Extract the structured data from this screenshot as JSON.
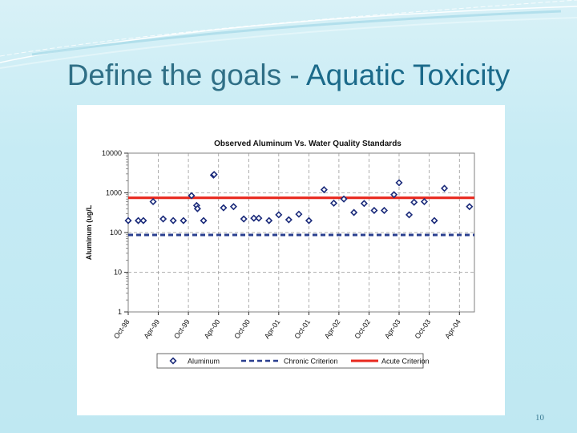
{
  "slide": {
    "title_part1": "Define the goals - ",
    "title_part2": "Aquatic Toxicity",
    "page_number": "10",
    "title_color": "#2f6f86"
  },
  "chart_data": {
    "type": "scatter",
    "title": "Observed Aluminum Vs. Water Quality Standards",
    "ylabel": "Aluminum (ug/L",
    "xlabel": "",
    "y_scale": "log",
    "ylim": [
      1,
      10000
    ],
    "y_ticks": [
      {
        "value": 1,
        "label": "1"
      },
      {
        "value": 10,
        "label": "10"
      },
      {
        "value": 100,
        "label": "100"
      },
      {
        "value": 1000,
        "label": "1000"
      },
      {
        "value": 10000,
        "label": "10000"
      }
    ],
    "xlim": [
      "1998-10-01",
      "2004-07-01"
    ],
    "x_ticks": [
      "Oct-98",
      "Apr-99",
      "Oct-99",
      "Apr-00",
      "Oct-00",
      "Apr-01",
      "Oct-01",
      "Apr-02",
      "Oct-02",
      "Apr-03",
      "Oct-03",
      "Apr-04"
    ],
    "x_tick_dates": [
      "1998-10-01",
      "1999-04-01",
      "1999-10-01",
      "2000-04-01",
      "2000-10-01",
      "2001-04-01",
      "2001-10-01",
      "2002-04-01",
      "2002-10-01",
      "2003-04-01",
      "2003-10-01",
      "2004-04-01"
    ],
    "grid": true,
    "legend_position": "bottom",
    "series": [
      {
        "name": "Aluminum",
        "kind": "markers",
        "color": "#1a2a7a",
        "points": [
          {
            "x": "1998-10-01",
            "y": 200
          },
          {
            "x": "1998-12-01",
            "y": 200
          },
          {
            "x": "1999-01-01",
            "y": 200
          },
          {
            "x": "1999-03-01",
            "y": 600
          },
          {
            "x": "1999-05-01",
            "y": 220
          },
          {
            "x": "1999-07-01",
            "y": 200
          },
          {
            "x": "1999-09-01",
            "y": 200
          },
          {
            "x": "1999-10-20",
            "y": 850
          },
          {
            "x": "1999-11-20",
            "y": 480
          },
          {
            "x": "1999-11-25",
            "y": 400
          },
          {
            "x": "2000-01-01",
            "y": 200
          },
          {
            "x": "2000-03-01",
            "y": 2800
          },
          {
            "x": "2000-03-05",
            "y": 2900
          },
          {
            "x": "2000-05-01",
            "y": 420
          },
          {
            "x": "2000-07-01",
            "y": 450
          },
          {
            "x": "2000-09-01",
            "y": 220
          },
          {
            "x": "2000-11-01",
            "y": 230
          },
          {
            "x": "2000-12-01",
            "y": 230
          },
          {
            "x": "2001-02-01",
            "y": 200
          },
          {
            "x": "2001-04-01",
            "y": 280
          },
          {
            "x": "2001-06-01",
            "y": 210
          },
          {
            "x": "2001-08-01",
            "y": 290
          },
          {
            "x": "2001-10-01",
            "y": 200
          },
          {
            "x": "2002-01-01",
            "y": 1200
          },
          {
            "x": "2002-03-01",
            "y": 550
          },
          {
            "x": "2002-05-01",
            "y": 700
          },
          {
            "x": "2002-07-01",
            "y": 320
          },
          {
            "x": "2002-09-01",
            "y": 540
          },
          {
            "x": "2002-11-01",
            "y": 360
          },
          {
            "x": "2003-01-01",
            "y": 360
          },
          {
            "x": "2003-03-01",
            "y": 900
          },
          {
            "x": "2003-04-01",
            "y": 1800
          },
          {
            "x": "2003-06-01",
            "y": 280
          },
          {
            "x": "2003-07-01",
            "y": 580
          },
          {
            "x": "2003-09-01",
            "y": 600
          },
          {
            "x": "2003-11-01",
            "y": 200
          },
          {
            "x": "2004-01-01",
            "y": 1300
          },
          {
            "x": "2004-06-01",
            "y": 450
          }
        ]
      },
      {
        "name": "Chronic Criterion",
        "kind": "dashed-line",
        "color": "#2a3f8f",
        "value": 87
      },
      {
        "name": "Acute Criterion",
        "kind": "solid-line",
        "color": "#e8281e",
        "value": 750
      }
    ]
  }
}
